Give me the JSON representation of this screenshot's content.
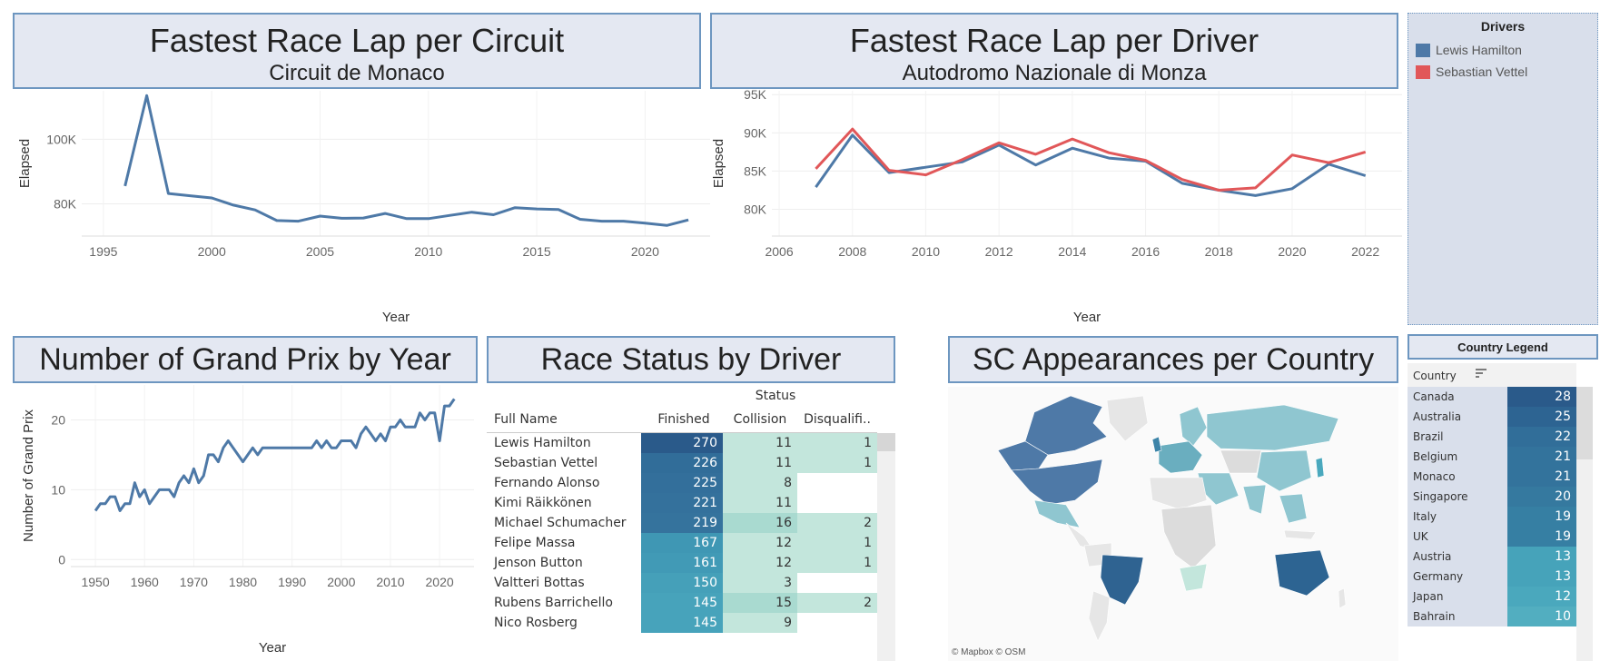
{
  "circuit_panel": {
    "title": "Fastest Race Lap per Circuit",
    "subtitle": "Circuit de Monaco"
  },
  "driver_panel": {
    "title": "Fastest Race Lap per Driver",
    "subtitle": "Autodromo Nazionale di Monza"
  },
  "gp_panel": {
    "title": "Number of Grand Prix by Year"
  },
  "status_panel": {
    "title": "Race Status by Driver"
  },
  "sc_panel": {
    "title": "SC Appearances per Country",
    "attribution": "© Mapbox  © OSM"
  },
  "drivers_legend": {
    "title": "Drivers",
    "items": [
      {
        "label": "Lewis Hamilton",
        "color": "#4e79a7"
      },
      {
        "label": "Sebastian Vettel",
        "color": "#e15759"
      }
    ]
  },
  "chart_data": [
    {
      "id": "circuit",
      "type": "line",
      "xlabel": "Year",
      "ylabel": "Elapsed",
      "xticks": [
        1995,
        2000,
        2005,
        2010,
        2015,
        2020
      ],
      "yticks": [
        80000,
        100000
      ],
      "ytick_labels": [
        "80K",
        "100K"
      ],
      "xlim": [
        1994,
        2023
      ],
      "ylim": [
        70000,
        115000
      ],
      "series": [
        {
          "color": "#4e79a7",
          "x": [
            1996,
            1997,
            1998,
            1999,
            2000,
            2001,
            2002,
            2003,
            2004,
            2005,
            2006,
            2007,
            2008,
            2009,
            2010,
            2011,
            2012,
            2013,
            2014,
            2015,
            2016,
            2017,
            2018,
            2019,
            2020,
            2021,
            2022
          ],
          "y": [
            85500,
            113500,
            83200,
            82500,
            81800,
            79600,
            78100,
            74800,
            74600,
            76200,
            75500,
            75600,
            77000,
            75400,
            75400,
            76400,
            77400,
            76600,
            78800,
            78400,
            78200,
            75200,
            74600,
            74600,
            74000,
            73300,
            75000
          ]
        }
      ]
    },
    {
      "id": "driver",
      "type": "line",
      "xlabel": "Year",
      "ylabel": "Elapsed",
      "xticks": [
        2006,
        2008,
        2010,
        2012,
        2014,
        2016,
        2018,
        2020,
        2022
      ],
      "yticks": [
        80000,
        85000,
        90000,
        95000
      ],
      "ytick_labels": [
        "80K",
        "85K",
        "90K",
        "95K"
      ],
      "xlim": [
        2005.8,
        2023
      ],
      "ylim": [
        76500,
        95500
      ],
      "series": [
        {
          "name": "Lewis Hamilton",
          "color": "#4e79a7",
          "x": [
            2007,
            2008,
            2009,
            2010,
            2011,
            2012,
            2013,
            2014,
            2015,
            2016,
            2017,
            2018,
            2019,
            2020,
            2021,
            2022
          ],
          "y": [
            82900,
            89700,
            84800,
            85500,
            86200,
            88400,
            85800,
            88000,
            86700,
            86300,
            83400,
            82500,
            81800,
            82700,
            85900,
            84400
          ]
        },
        {
          "name": "Sebastian Vettel",
          "color": "#e15759",
          "x": [
            2007,
            2008,
            2009,
            2010,
            2011,
            2012,
            2013,
            2014,
            2015,
            2016,
            2017,
            2018,
            2019,
            2020,
            2021,
            2022
          ],
          "y": [
            85300,
            90500,
            85100,
            84500,
            86500,
            88700,
            87200,
            89200,
            87400,
            86400,
            83900,
            82500,
            82800,
            87100,
            86100,
            87500
          ]
        }
      ]
    },
    {
      "id": "gp",
      "type": "line",
      "xlabel": "Year",
      "ylabel": "Number of Grand Prix",
      "xticks": [
        1950,
        1960,
        1970,
        1980,
        1990,
        2000,
        2010,
        2020
      ],
      "yticks": [
        0,
        10,
        20
      ],
      "ytick_labels": [
        "0",
        "10",
        "20"
      ],
      "xlim": [
        1945,
        2027
      ],
      "ylim": [
        -1,
        25
      ],
      "series": [
        {
          "color": "#4e79a7",
          "x": [
            1950,
            1951,
            1952,
            1953,
            1954,
            1955,
            1956,
            1957,
            1958,
            1959,
            1960,
            1961,
            1962,
            1963,
            1964,
            1965,
            1966,
            1967,
            1968,
            1969,
            1970,
            1971,
            1972,
            1973,
            1974,
            1975,
            1976,
            1977,
            1978,
            1979,
            1980,
            1981,
            1982,
            1983,
            1984,
            1985,
            1986,
            1987,
            1988,
            1989,
            1990,
            1991,
            1992,
            1993,
            1994,
            1995,
            1996,
            1997,
            1998,
            1999,
            2000,
            2001,
            2002,
            2003,
            2004,
            2005,
            2006,
            2007,
            2008,
            2009,
            2010,
            2011,
            2012,
            2013,
            2014,
            2015,
            2016,
            2017,
            2018,
            2019,
            2020,
            2021,
            2022,
            2023
          ],
          "y": [
            7,
            8,
            8,
            9,
            9,
            7,
            8,
            8,
            11,
            9,
            10,
            8,
            9,
            10,
            10,
            10,
            9,
            11,
            12,
            11,
            13,
            11,
            12,
            15,
            15,
            14,
            16,
            17,
            16,
            15,
            14,
            15,
            16,
            15,
            16,
            16,
            16,
            16,
            16,
            16,
            16,
            16,
            16,
            16,
            16,
            17,
            16,
            17,
            16,
            16,
            17,
            17,
            17,
            16,
            18,
            19,
            18,
            17,
            18,
            17,
            19,
            19,
            20,
            19,
            19,
            19,
            21,
            20,
            21,
            21,
            17,
            22,
            22,
            23
          ]
        }
      ]
    }
  ],
  "status_table": {
    "group_header": "Status",
    "columns": [
      "Full Name",
      "Finished",
      "Collision",
      "Disqualifi.."
    ],
    "rows": [
      {
        "name": "Lewis Hamilton",
        "finished": "270",
        "collision": "11",
        "disq": "1",
        "f_color": "#2a5a8a",
        "c_color": "#c3e6dc",
        "d_color": "#c3e6dc"
      },
      {
        "name": "Sebastian Vettel",
        "finished": "226",
        "collision": "11",
        "disq": "1",
        "f_color": "#316d99",
        "c_color": "#c3e6dc",
        "d_color": "#c3e6dc"
      },
      {
        "name": "Fernando Alonso",
        "finished": "225",
        "collision": "8",
        "disq": "",
        "f_color": "#336f9b",
        "c_color": "#c3e6dc",
        "d_color": "#ffffff"
      },
      {
        "name": "Kimi Räikkönen",
        "finished": "221",
        "collision": "11",
        "disq": "",
        "f_color": "#34719c",
        "c_color": "#c3e6dc",
        "d_color": "#ffffff"
      },
      {
        "name": "Michael Schumacher",
        "finished": "219",
        "collision": "16",
        "disq": "2",
        "f_color": "#35739d",
        "c_color": "#a9dad0",
        "d_color": "#c3e6dc"
      },
      {
        "name": "Felipe Massa",
        "finished": "167",
        "collision": "12",
        "disq": "1",
        "f_color": "#3f97b4",
        "c_color": "#c3e6dc",
        "d_color": "#c3e6dc"
      },
      {
        "name": "Jenson Button",
        "finished": "161",
        "collision": "12",
        "disq": "1",
        "f_color": "#419ab6",
        "c_color": "#c3e6dc",
        "d_color": "#c3e6dc"
      },
      {
        "name": "Valtteri Bottas",
        "finished": "150",
        "collision": "3",
        "disq": "",
        "f_color": "#45a0b9",
        "c_color": "#c3e6dc",
        "d_color": "#ffffff"
      },
      {
        "name": "Rubens Barrichello",
        "finished": "145",
        "collision": "15",
        "disq": "2",
        "f_color": "#47a3bb",
        "c_color": "#a9dad0",
        "d_color": "#c3e6dc"
      },
      {
        "name": "Nico Rosberg",
        "finished": "145",
        "collision": "9",
        "disq": "",
        "f_color": "#47a3bb",
        "c_color": "#c3e6dc",
        "d_color": "#ffffff"
      }
    ]
  },
  "country_legend": {
    "title": "Country Legend",
    "header": "Country",
    "rows": [
      {
        "country": "Canada",
        "value": "28",
        "color": "#2a5a8a"
      },
      {
        "country": "Australia",
        "value": "25",
        "color": "#2d6492"
      },
      {
        "country": "Brazil",
        "value": "22",
        "color": "#316e99"
      },
      {
        "country": "Belgium",
        "value": "21",
        "color": "#33739c"
      },
      {
        "country": "Monaco",
        "value": "21",
        "color": "#33739c"
      },
      {
        "country": "Singapore",
        "value": "20",
        "color": "#35799f"
      },
      {
        "country": "Italy",
        "value": "19",
        "color": "#367fa3"
      },
      {
        "country": "UK",
        "value": "19",
        "color": "#367fa3"
      },
      {
        "country": "Austria",
        "value": "13",
        "color": "#46a3ba"
      },
      {
        "country": "Germany",
        "value": "13",
        "color": "#46a3ba"
      },
      {
        "country": "Japan",
        "value": "12",
        "color": "#4aa8bd"
      },
      {
        "country": "Bahrain",
        "value": "10",
        "color": "#52aec0"
      }
    ]
  }
}
